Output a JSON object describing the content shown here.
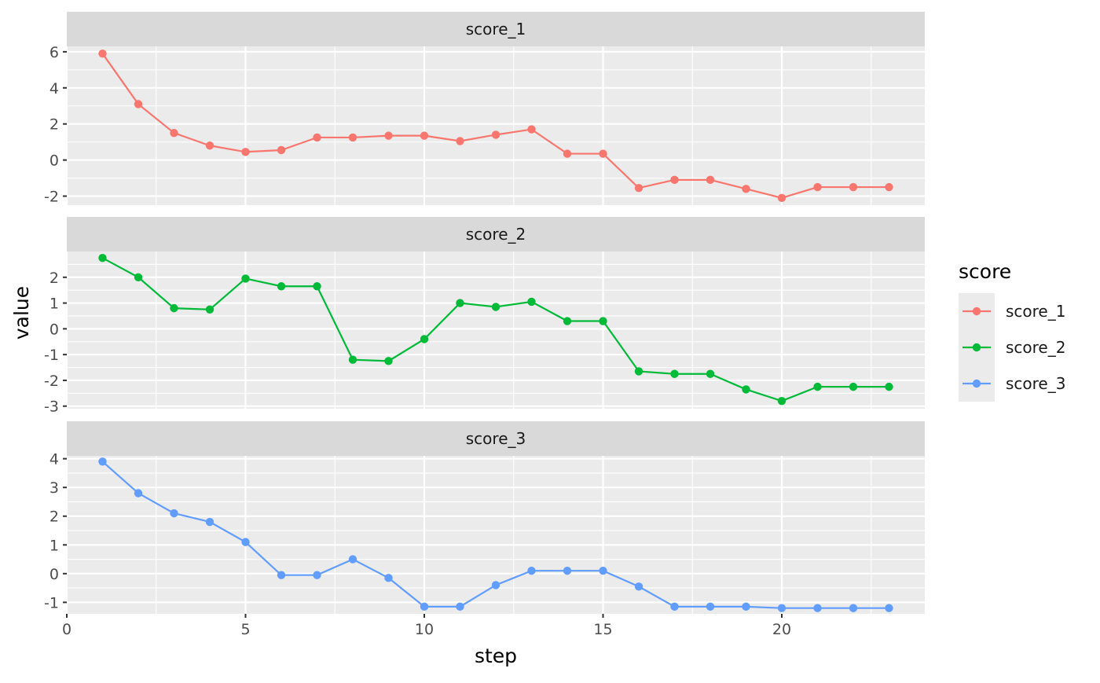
{
  "chart_data": {
    "type": "line",
    "xlabel": "step",
    "ylabel": "value",
    "legend_title": "score",
    "legend_position": "right",
    "grid": true,
    "x": [
      1,
      2,
      3,
      4,
      5,
      6,
      7,
      8,
      9,
      10,
      11,
      12,
      13,
      14,
      15,
      16,
      17,
      18,
      19,
      20,
      21,
      22,
      23
    ],
    "xlim": [
      0,
      24
    ],
    "x_ticks": [
      0,
      5,
      10,
      15,
      20
    ],
    "series": [
      {
        "name": "score_1",
        "color": "#F8766D",
        "ylim": [
          -2.5,
          6.3
        ],
        "y_ticks": [
          -2,
          0,
          2,
          4,
          6
        ],
        "values": [
          5.9,
          3.1,
          1.5,
          0.8,
          0.45,
          0.55,
          1.25,
          1.25,
          1.35,
          1.35,
          1.05,
          1.4,
          1.7,
          0.35,
          0.35,
          -1.55,
          -1.1,
          -1.1,
          -1.6,
          -2.1,
          -1.5,
          -1.5,
          -1.5
        ]
      },
      {
        "name": "score_2",
        "color": "#00BA38",
        "ylim": [
          -3.1,
          3.0
        ],
        "y_ticks": [
          -3,
          -2,
          -1,
          0,
          1,
          2
        ],
        "values": [
          2.75,
          2.0,
          0.8,
          0.75,
          1.95,
          1.65,
          1.65,
          -1.2,
          -1.25,
          -0.4,
          1.0,
          0.85,
          1.05,
          0.3,
          0.3,
          -1.65,
          -1.75,
          -1.75,
          -2.35,
          -2.8,
          -2.25,
          -2.25,
          -2.25
        ]
      },
      {
        "name": "score_3",
        "color": "#619CFF",
        "ylim": [
          -1.4,
          4.1
        ],
        "y_ticks": [
          -1,
          0,
          1,
          2,
          3,
          4
        ],
        "values": [
          3.9,
          2.8,
          2.1,
          1.8,
          1.1,
          -0.05,
          -0.05,
          0.5,
          -0.15,
          -1.15,
          -1.15,
          -0.4,
          0.1,
          0.1,
          0.1,
          -0.45,
          -1.15,
          -1.15,
          -1.15,
          -1.2,
          -1.2,
          -1.2,
          -1.2
        ]
      }
    ]
  }
}
